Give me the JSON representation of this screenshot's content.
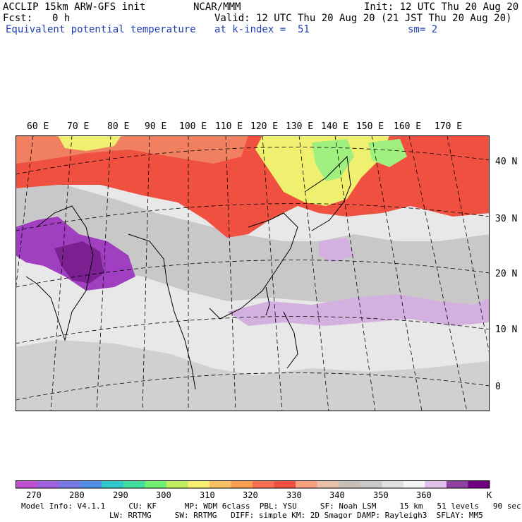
{
  "header": {
    "model_line": "ACCLIP 15km ARW-GFS init",
    "center": "NCAR/MMM",
    "init": "Init: 12 UTC Thu 20 Aug 20",
    "fcst_label": "Fcst:",
    "fcst_value": "0 h",
    "valid": "Valid: 12 UTC Thu 20 Aug 20 (21 JST Thu 20 Aug 20)",
    "field": "Equivalent potential temperature",
    "level": "at k-index =  51",
    "smooth": "sm= 2"
  },
  "map": {
    "lon_labels": [
      "60 E",
      "70 E",
      "80 E",
      "90 E",
      "100 E",
      "110 E",
      "120 E",
      "130 E",
      "140 E",
      "150 E",
      "160 E",
      "170 E"
    ],
    "lat_labels": [
      "40 N",
      "30 N",
      "20 N",
      "10 N",
      "0"
    ],
    "colors": {
      "magenta": "#a040c0",
      "purple_dark": "#7a2090",
      "light_purple": "#d4b0e0",
      "grey": "#c8c8c8",
      "light_grey": "#e8e8e8",
      "red": "#f05040",
      "orange": "#f08060",
      "yellow": "#f0f070",
      "green": "#a0f080"
    }
  },
  "colorbar": {
    "labels": [
      "270",
      "280",
      "290",
      "300",
      "310",
      "320",
      "330",
      "340",
      "350",
      "360"
    ],
    "unit": "K",
    "colors": [
      "#c050d0",
      "#a060e0",
      "#7878e8",
      "#5090e8",
      "#30c8c8",
      "#40e0a0",
      "#70f070",
      "#c0f060",
      "#f8f070",
      "#f8c060",
      "#f8a050",
      "#f87050",
      "#f05040",
      "#f8a080",
      "#e8c0a8",
      "#c8c0b8",
      "#c8c8c8",
      "#e0e0e0",
      "#f4f4f4",
      "#e0c0e8",
      "#9040a0",
      "#700080"
    ]
  },
  "footer": {
    "line1": "Model Info: V4.1.1     CU: KF      MP: WDM 6class  PBL: YSU     SF: Noah LSM     15 km   51 levels   90 sec",
    "line2": "LW: RRTMG     SW: RRTMG   DIFF: simple KM: 2D Smagor DAMP: Rayleigh3  SFLAY: MM5"
  }
}
